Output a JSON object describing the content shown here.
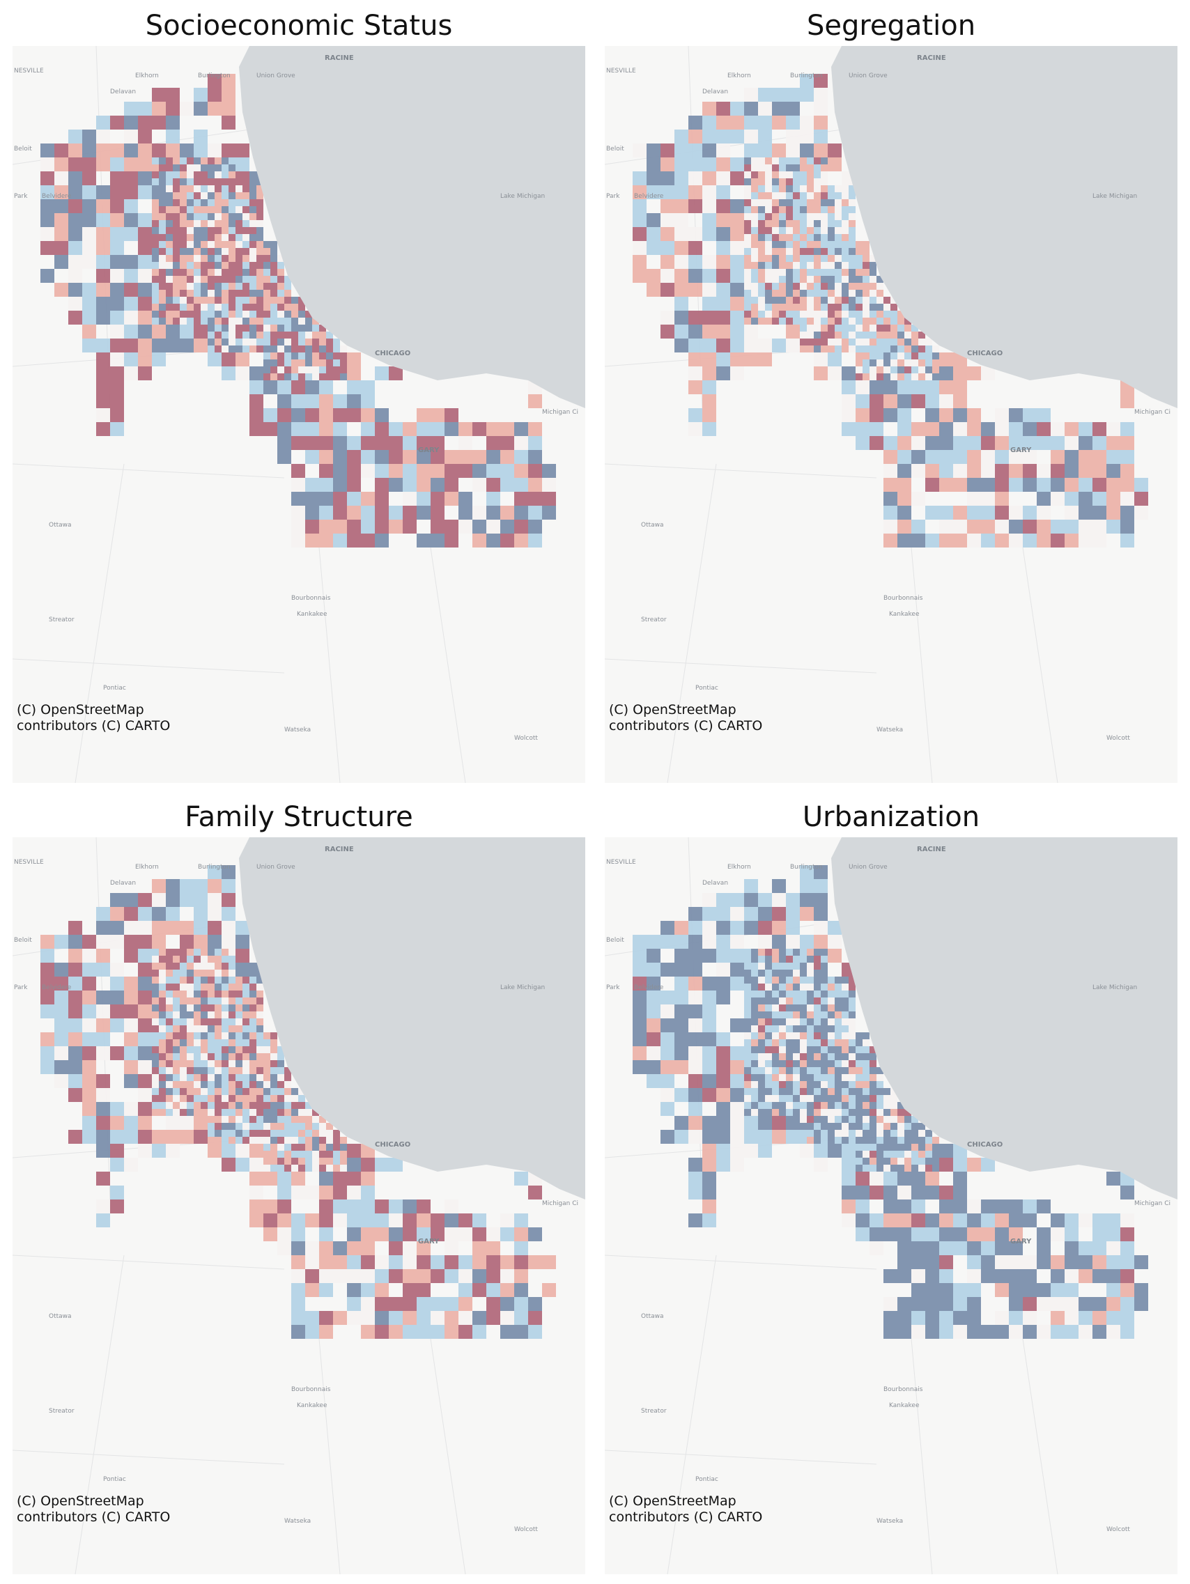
{
  "colors": {
    "basemap": "#f7f7f6",
    "lake": "#d4d8db",
    "strongNegative": "#7b8fac",
    "weakNegative": "#b4d3e6",
    "neutral": "#f5f2f1",
    "weakPositive": "#ecb3aa",
    "strongPositive": "#b26a7c"
  },
  "panels": [
    {
      "title": "Socioeconomic Status",
      "weights": [
        0.22,
        0.2,
        0.12,
        0.2,
        0.26
      ]
    },
    {
      "title": "Segregation",
      "weights": [
        0.15,
        0.33,
        0.18,
        0.24,
        0.1
      ]
    },
    {
      "title": "Family Structure",
      "weights": [
        0.12,
        0.24,
        0.16,
        0.26,
        0.22
      ]
    },
    {
      "title": "Urbanization",
      "weights": [
        0.42,
        0.26,
        0.14,
        0.11,
        0.07
      ]
    }
  ],
  "attribution": {
    "line1": "(C) OpenStreetMap",
    "line2": "contributors (C) CARTO"
  },
  "places": [
    "NESVILLE",
    "Elkhorn",
    "Burlington",
    "Union Grove",
    "RACINE",
    "Delavan",
    "Beloit",
    "Park",
    "Belvidere",
    "Lake Michigan",
    "Michigan Ci",
    "Ottawa",
    "Bourbonnais",
    "Kankakee",
    "Streator",
    "Pontiac",
    "Watseka",
    "Wolcott",
    "GARY",
    "CHICAGO"
  ]
}
